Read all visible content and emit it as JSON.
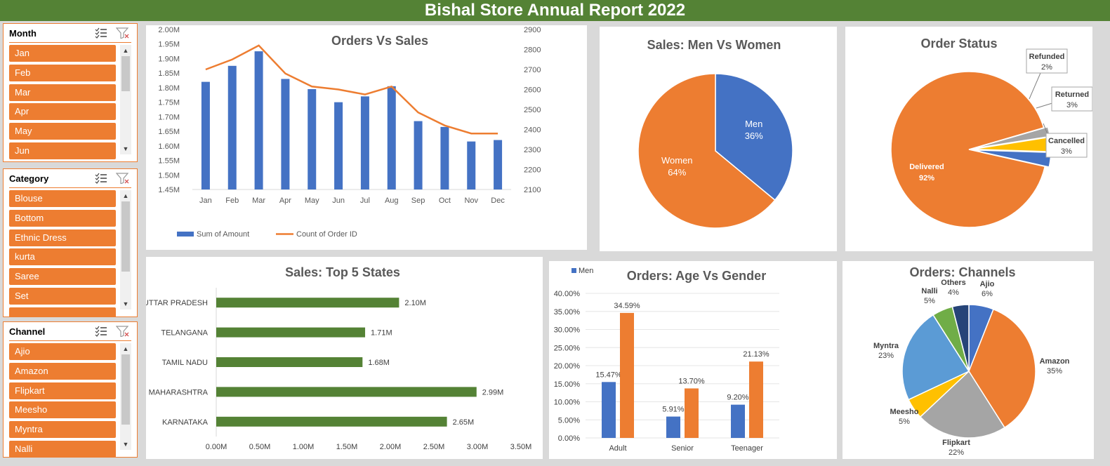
{
  "title": "Bishal Store Annual Report 2022",
  "slicers": [
    {
      "title": "Month",
      "items": [
        "Jan",
        "Feb",
        "Mar",
        "Apr",
        "May",
        "Jun"
      ]
    },
    {
      "title": "Category",
      "items": [
        "Blouse",
        "Bottom",
        "Ethnic Dress",
        "kurta",
        "Saree",
        "Set"
      ]
    },
    {
      "title": "Channel",
      "items": [
        "Ajio",
        "Amazon",
        "Flipkart",
        "Meesho",
        "Myntra",
        "Nalli"
      ]
    }
  ],
  "colors": {
    "blue": "#4472c4",
    "orange": "#ed7d31",
    "gray": "#a5a5a5",
    "yellow": "#ffc000",
    "lightblue": "#5b9bd5",
    "green": "#70ad47",
    "navy": "#264478",
    "darkgreen": "#548235"
  },
  "chart_data": [
    {
      "id": "orders-vs-sales",
      "type": "bar",
      "title": "Orders Vs Sales",
      "categories": [
        "Jan",
        "Feb",
        "Mar",
        "Apr",
        "May",
        "Jun",
        "Jul",
        "Aug",
        "Sep",
        "Oct",
        "Nov",
        "Dec"
      ],
      "series": [
        {
          "name": "Sum of Amount",
          "type": "bar",
          "axis": "left",
          "values": [
            1.82,
            1.875,
            1.925,
            1.83,
            1.795,
            1.75,
            1.77,
            1.805,
            1.685,
            1.665,
            1.615,
            1.62
          ]
        },
        {
          "name": "Count of Order ID",
          "type": "line",
          "axis": "right",
          "values": [
            2700,
            2750,
            2820,
            2680,
            2615,
            2600,
            2575,
            2615,
            2485,
            2420,
            2380,
            2380
          ]
        }
      ],
      "y_left": {
        "min": 1.45,
        "max": 2.0,
        "ticks": [
          "2.00M",
          "1.95M",
          "1.90M",
          "1.85M",
          "1.80M",
          "1.75M",
          "1.70M",
          "1.65M",
          "1.60M",
          "1.55M",
          "1.50M",
          "1.45M"
        ]
      },
      "y_right": {
        "min": 2100,
        "max": 2900,
        "ticks": [
          "2900",
          "2800",
          "2700",
          "2600",
          "2500",
          "2400",
          "2300",
          "2200",
          "2100"
        ]
      }
    },
    {
      "id": "men-vs-women",
      "type": "pie",
      "title": "Sales: Men Vs Women",
      "slices": [
        {
          "name": "Men",
          "value": 36,
          "label": "36%"
        },
        {
          "name": "Women",
          "value": 64,
          "label": "64%"
        }
      ]
    },
    {
      "id": "order-status",
      "type": "pie",
      "title": "Order Status",
      "slices": [
        {
          "name": "Delivered",
          "value": 92,
          "label": "92%"
        },
        {
          "name": "Refunded",
          "value": 2,
          "label": "2%"
        },
        {
          "name": "Returned",
          "value": 3,
          "label": "3%"
        },
        {
          "name": "Cancelled",
          "value": 3,
          "label": "3%"
        }
      ]
    },
    {
      "id": "top-5-states",
      "type": "bar",
      "orientation": "horizontal",
      "title": "Sales: Top 5 States",
      "categories": [
        "UTTAR PRADESH",
        "TELANGANA",
        "TAMIL NADU",
        "MAHARASHTRA",
        "KARNATAKA"
      ],
      "values": [
        2.1,
        1.71,
        1.68,
        2.99,
        2.65
      ],
      "labels": [
        "2.10M",
        "1.71M",
        "1.68M",
        "2.99M",
        "2.65M"
      ],
      "x_ticks": [
        "0.00M",
        "0.50M",
        "1.00M",
        "1.50M",
        "2.00M",
        "2.50M",
        "3.00M",
        "3.50M"
      ],
      "xlim": [
        0,
        3.5
      ]
    },
    {
      "id": "age-vs-gender",
      "type": "bar",
      "title": "Orders: Age Vs Gender",
      "categories": [
        "Adult",
        "Senior",
        "Teenager"
      ],
      "series": [
        {
          "name": "Men",
          "values": [
            15.47,
            5.91,
            9.2
          ],
          "labels": [
            "15.47%",
            "5.91%",
            "9.20%"
          ]
        },
        {
          "values": [
            34.59,
            13.7,
            21.13
          ],
          "labels": [
            "34.59%",
            "13.70%",
            "21.13%"
          ]
        }
      ],
      "y_ticks": [
        "40.00%",
        "35.00%",
        "30.00%",
        "25.00%",
        "20.00%",
        "15.00%",
        "10.00%",
        "5.00%",
        "0.00%"
      ],
      "ylim": [
        0,
        40
      ],
      "legend": "top-left"
    },
    {
      "id": "channels",
      "type": "pie",
      "title": "Orders: Channels",
      "slices": [
        {
          "name": "Ajio",
          "value": 6,
          "label": "6%"
        },
        {
          "name": "Amazon",
          "value": 35,
          "label": "35%"
        },
        {
          "name": "Flipkart",
          "value": 22,
          "label": "22%"
        },
        {
          "name": "Meesho",
          "value": 5,
          "label": "5%"
        },
        {
          "name": "Myntra",
          "value": 23,
          "label": "23%"
        },
        {
          "name": "Nalli",
          "value": 5,
          "label": "5%"
        },
        {
          "name": "Others",
          "value": 4,
          "label": "4%"
        }
      ]
    }
  ]
}
